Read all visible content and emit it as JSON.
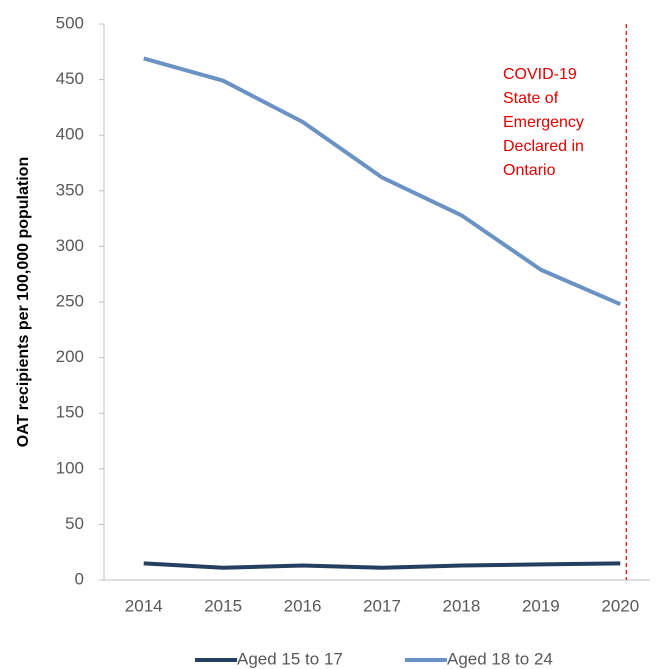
{
  "chart_data": {
    "type": "line",
    "y_label": "OAT recipients per 100,000 population",
    "categories": [
      "2014",
      "2015",
      "2016",
      "2017",
      "2018",
      "2019",
      "2020"
    ],
    "series": [
      {
        "name": "Aged 15 to 17",
        "color": "#243f60",
        "values": [
          15,
          11,
          13,
          11,
          13,
          14,
          15
        ]
      },
      {
        "name": "Aged 18 to 24",
        "color": "#6a93c3",
        "values": [
          469,
          449,
          412,
          362,
          328,
          279,
          248
        ]
      }
    ],
    "ylim": [
      0,
      500
    ],
    "yticks": [
      0,
      50,
      100,
      150,
      200,
      250,
      300,
      350,
      400,
      450,
      500
    ],
    "grid": false,
    "annotation": {
      "lines": [
        "COVID-19",
        "State of",
        "Emergency",
        "Declared in",
        "Ontario"
      ],
      "color": "#e00000"
    }
  }
}
